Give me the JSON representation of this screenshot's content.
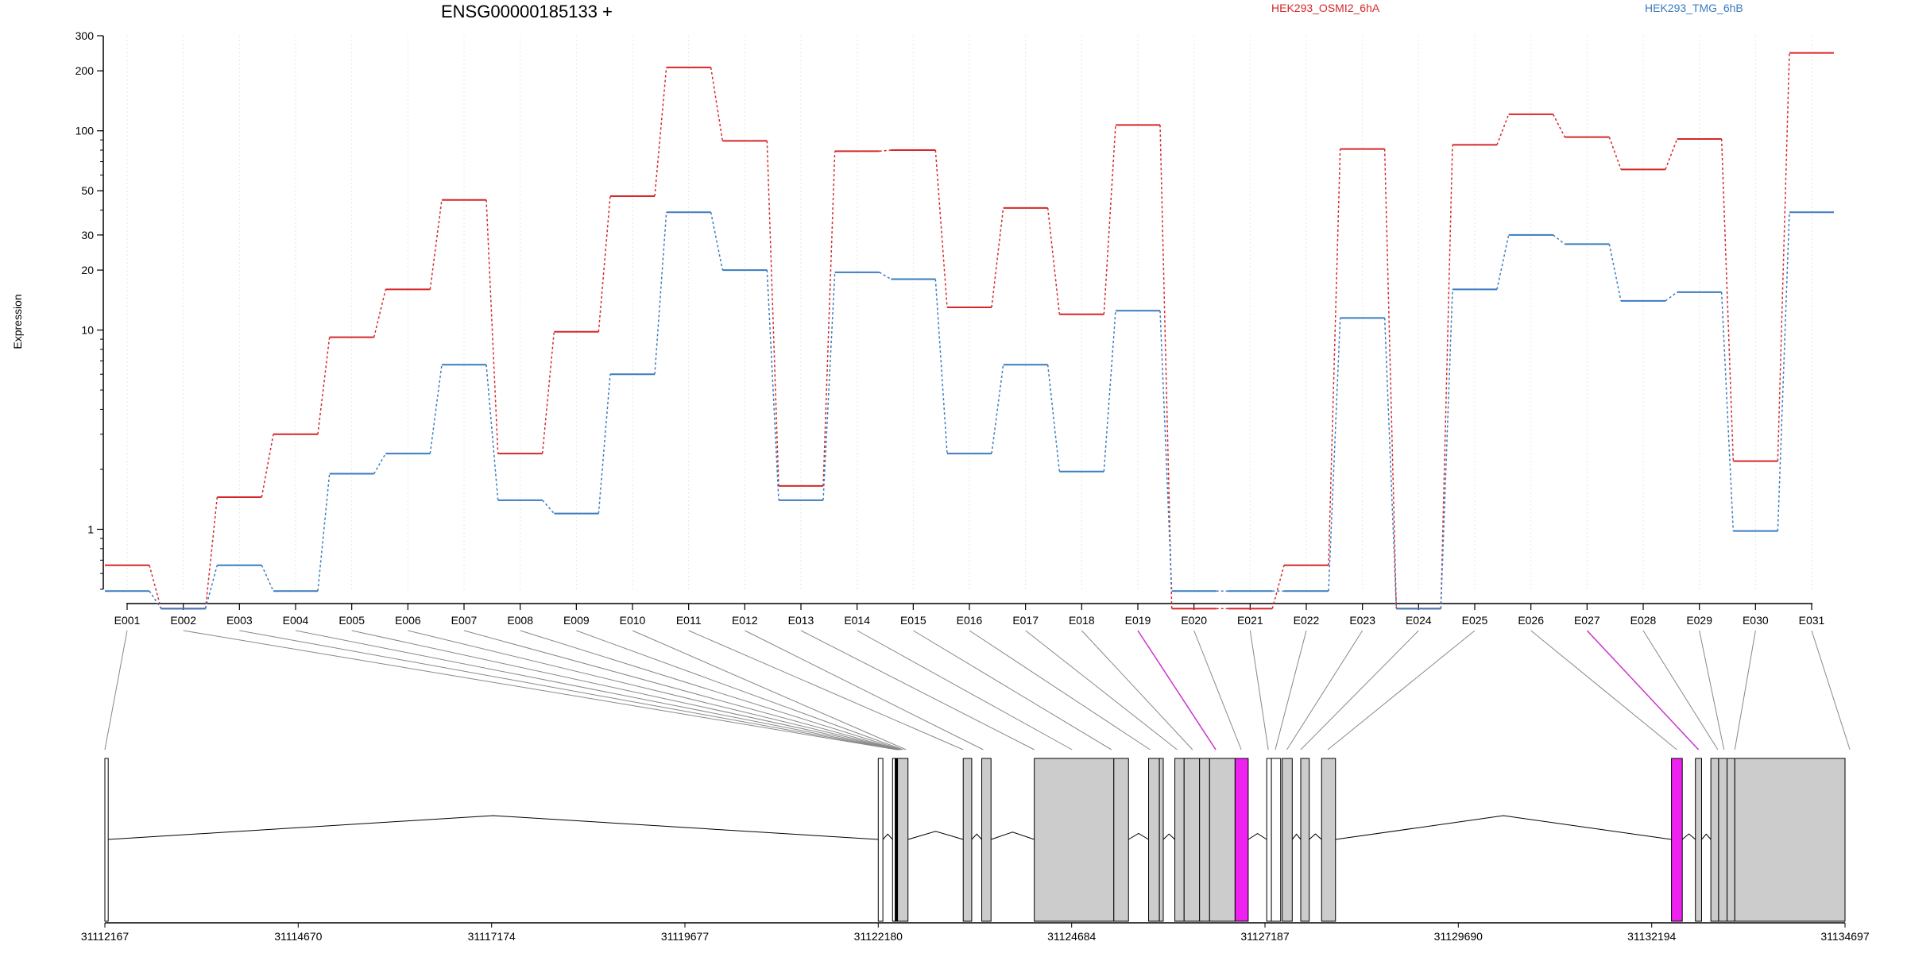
{
  "chart_data": {
    "type": "line",
    "title": "ENSG00000185133 +",
    "ylabel": "Expression",
    "y_scale": "log",
    "ylim": [
      0.5,
      300
    ],
    "y_ticks": [
      1,
      10,
      20,
      30,
      50,
      100,
      200,
      300
    ],
    "grid": "vertical dotted lines at each exon",
    "legend_placement": "top",
    "categories": [
      "E001",
      "E002",
      "E003",
      "E004",
      "E005",
      "E006",
      "E007",
      "E008",
      "E009",
      "E010",
      "E011",
      "E012",
      "E013",
      "E014",
      "E015",
      "E016",
      "E017",
      "E018",
      "E019",
      "E020",
      "E021",
      "E022",
      "E023",
      "E024",
      "E025",
      "E026",
      "E027",
      "E028",
      "E029",
      "E030",
      "E031"
    ],
    "series": [
      {
        "name": "HEK293_OSMI2_6hA",
        "color": "#d62728",
        "values": [
          0.66,
          0.4,
          1.45,
          3.0,
          9.2,
          16,
          45,
          2.4,
          9.8,
          47,
          208,
          89,
          1.65,
          79,
          80,
          13,
          41,
          12,
          107,
          0.4,
          0.4,
          0.66,
          81,
          0.4,
          85,
          121,
          93,
          64,
          91,
          2.2,
          246
        ]
      },
      {
        "name": "HEK293_TMG_6hB",
        "color": "#3a7bbf",
        "values": [
          0.49,
          0.4,
          0.66,
          0.49,
          1.9,
          2.4,
          6.7,
          1.4,
          1.2,
          6.0,
          39,
          20,
          1.4,
          19.5,
          18,
          2.4,
          6.7,
          1.95,
          12.5,
          0.49,
          0.49,
          0.49,
          11.5,
          0.4,
          16,
          30,
          27,
          14,
          15.5,
          0.98,
          39
        ]
      }
    ],
    "gene_model": {
      "coordinate_ticks": [
        31112167,
        31114670,
        31117174,
        31119677,
        31122180,
        31124684,
        31127187,
        31129690,
        31132194,
        31134697
      ],
      "exons": [
        {
          "start": 31112167,
          "end": 31112210,
          "fill": "#ffffff"
        },
        {
          "start": 31122180,
          "end": 31122240,
          "fill": "#ffffff"
        },
        {
          "start": 31122365,
          "end": 31122400,
          "fill": "#ffffff"
        },
        {
          "start": 31122400,
          "end": 31122430,
          "fill": "#000000"
        },
        {
          "start": 31122430,
          "end": 31122565,
          "fill": "#cccccc"
        },
        {
          "start": 31123280,
          "end": 31123390,
          "fill": "#cccccc"
        },
        {
          "start": 31123520,
          "end": 31123640,
          "fill": "#cccccc"
        },
        {
          "start": 31124200,
          "end": 31125230,
          "fill": "#cccccc"
        },
        {
          "start": 31125230,
          "end": 31125420,
          "fill": "#cccccc"
        },
        {
          "start": 31125680,
          "end": 31125820,
          "fill": "#cccccc"
        },
        {
          "start": 31125820,
          "end": 31125870,
          "fill": "#cccccc"
        },
        {
          "start": 31126020,
          "end": 31126140,
          "fill": "#cccccc"
        },
        {
          "start": 31126140,
          "end": 31126340,
          "fill": "#cccccc"
        },
        {
          "start": 31126340,
          "end": 31126470,
          "fill": "#cccccc"
        },
        {
          "start": 31126470,
          "end": 31126800,
          "fill": "#cccccc"
        },
        {
          "start": 31126800,
          "end": 31126970,
          "fill": "#ee22ee"
        },
        {
          "start": 31127210,
          "end": 31127270,
          "fill": "#ffffff"
        },
        {
          "start": 31127270,
          "end": 31127390,
          "fill": "#ffffff"
        },
        {
          "start": 31127410,
          "end": 31127540,
          "fill": "#cccccc"
        },
        {
          "start": 31127650,
          "end": 31127760,
          "fill": "#cccccc"
        },
        {
          "start": 31127920,
          "end": 31128100,
          "fill": "#cccccc"
        },
        {
          "start": 31132450,
          "end": 31132590,
          "fill": "#ee22ee"
        },
        {
          "start": 31132760,
          "end": 31132840,
          "fill": "#cccccc"
        },
        {
          "start": 31132960,
          "end": 31133060,
          "fill": "#cccccc"
        },
        {
          "start": 31133060,
          "end": 31133170,
          "fill": "#cccccc"
        },
        {
          "start": 31133170,
          "end": 31133270,
          "fill": "#cccccc"
        },
        {
          "start": 31133270,
          "end": 31134697,
          "fill": "#cccccc"
        }
      ],
      "exon_map_to": [
        31112167,
        31122420,
        31122430,
        31122440,
        31122450,
        31122455,
        31122460,
        31122480,
        31122500,
        31122540,
        31123280,
        31123540,
        31124200,
        31124690,
        31125200,
        31125700,
        31126050,
        31126250,
        31126550,
        31126880,
        31127230,
        31127320,
        31127470,
        31127650,
        31128000,
        31132520,
        31132800,
        31133050,
        31133130,
        31133270,
        31134760
      ],
      "highlighted_links": [
        "E019",
        "E027"
      ],
      "highlight_color": "#cc33cc"
    }
  }
}
